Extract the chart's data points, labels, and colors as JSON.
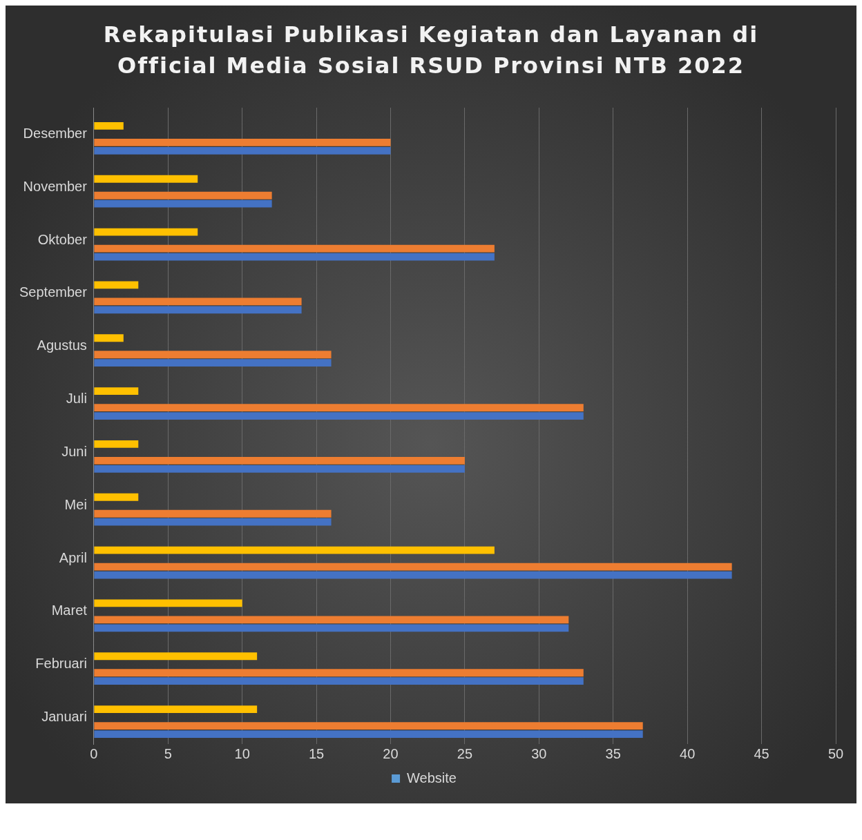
{
  "chart_data": {
    "type": "bar",
    "orientation": "horizontal",
    "title": "Rekapitulasi Publikasi Kegiatan dan Layanan di Official Media Sosial RSUD Provinsi NTB 2022",
    "categories": [
      "Desember",
      "November",
      "Oktober",
      "September",
      "Agustus",
      "Juli",
      "Juni",
      "Mei",
      "April",
      "Maret",
      "Februari",
      "Januari"
    ],
    "series": [
      {
        "name": "Website",
        "color": "#5b9bd5",
        "values": [
          0,
          0,
          0,
          0,
          0,
          0,
          0,
          0,
          0,
          0,
          0,
          0
        ]
      },
      {
        "color": "#ffc000",
        "values": [
          2,
          7,
          7,
          3,
          2,
          3,
          3,
          3,
          27,
          10,
          11,
          11
        ]
      },
      {
        "color": "#a5a5a5",
        "values": [
          0,
          0,
          0,
          0,
          0,
          0,
          0,
          0,
          0,
          0,
          0,
          0
        ]
      },
      {
        "color": "#ed7d31",
        "values": [
          20,
          12,
          27,
          14,
          16,
          33,
          25,
          16,
          43,
          32,
          33,
          37
        ]
      },
      {
        "color": "#4472c4",
        "values": [
          20,
          12,
          27,
          14,
          16,
          33,
          25,
          16,
          43,
          32,
          33,
          37
        ]
      }
    ],
    "xlim": [
      0,
      50
    ],
    "xticks": [
      0,
      5,
      10,
      15,
      20,
      25,
      30,
      35,
      40,
      45,
      50
    ],
    "grid": "x",
    "legend": "bottom"
  }
}
